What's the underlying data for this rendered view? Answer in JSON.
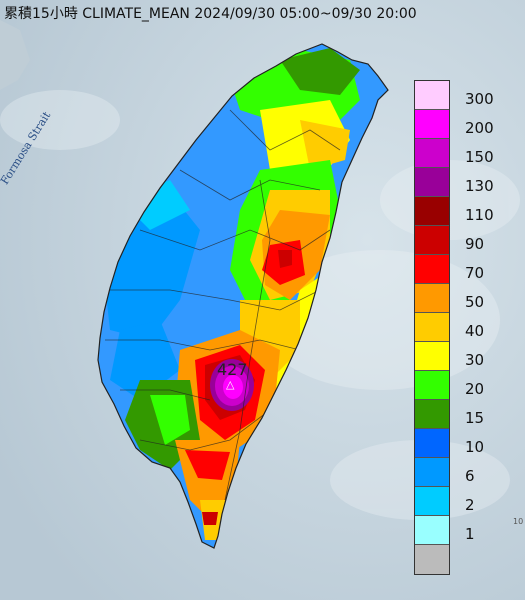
{
  "title": "累積15小時 CLIMATE_MEAN 2024/09/30 05:00~09/30 20:00",
  "strait_label": "Formosa Strait",
  "peak_value": "427",
  "peak_marker": "△",
  "edge_text": "10",
  "legend": [
    {
      "label": "300",
      "color": "#ffccff"
    },
    {
      "label": "200",
      "color": "#ff00ff"
    },
    {
      "label": "150",
      "color": "#cc00cc"
    },
    {
      "label": "130",
      "color": "#990099"
    },
    {
      "label": "110",
      "color": "#990000"
    },
    {
      "label": "90",
      "color": "#cc0000"
    },
    {
      "label": "70",
      "color": "#ff0000"
    },
    {
      "label": "50",
      "color": "#ff9900"
    },
    {
      "label": "40",
      "color": "#ffcc00"
    },
    {
      "label": "30",
      "color": "#ffff00"
    },
    {
      "label": "20",
      "color": "#33ff00"
    },
    {
      "label": "15",
      "color": "#339900"
    },
    {
      "label": "10",
      "color": "#0066ff"
    },
    {
      "label": "6",
      "color": "#0099ff"
    },
    {
      "label": "2",
      "color": "#00ccff"
    },
    {
      "label": "1",
      "color": "#99ffff"
    },
    {
      "label": "",
      "color": "#bbbbbb"
    }
  ]
}
